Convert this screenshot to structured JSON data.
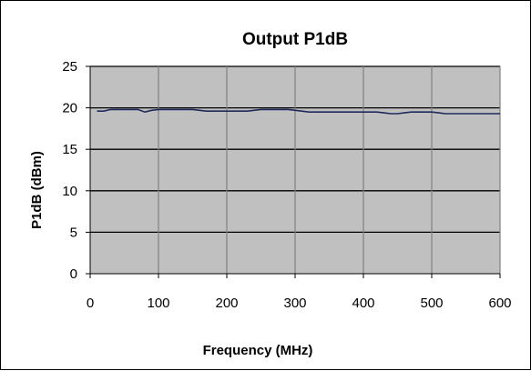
{
  "chart_data": {
    "type": "line",
    "title": "Output P1dB",
    "xlabel": "Frequency (MHz)",
    "ylabel": "P1dB (dBm)",
    "xlim": [
      0,
      600
    ],
    "ylim": [
      0,
      25
    ],
    "x_ticks": [
      "0",
      "100",
      "200",
      "300",
      "400",
      "500",
      "600"
    ],
    "y_ticks": [
      "0",
      "5",
      "10",
      "15",
      "20",
      "25"
    ],
    "grid": "major x and y",
    "legend": "none",
    "colors": {
      "plot_background": "#c0c0c0",
      "series_line": "#1f2a5c",
      "gridline": "#000000"
    },
    "series": [
      {
        "x": [
          10,
          20,
          30,
          40,
          50,
          60,
          70,
          80,
          90,
          100,
          110,
          120,
          130,
          140,
          150,
          160,
          170,
          180,
          190,
          200,
          210,
          220,
          230,
          240,
          250,
          260,
          270,
          280,
          290,
          300,
          310,
          320,
          330,
          340,
          350,
          360,
          370,
          380,
          390,
          400,
          410,
          420,
          430,
          440,
          450,
          460,
          470,
          480,
          490,
          500,
          510,
          520,
          530,
          540,
          550,
          560,
          570,
          580,
          590,
          600
        ],
        "y": [
          19.6,
          19.6,
          19.8,
          19.8,
          19.8,
          19.8,
          19.8,
          19.5,
          19.7,
          19.8,
          19.8,
          19.8,
          19.8,
          19.8,
          19.8,
          19.7,
          19.6,
          19.6,
          19.6,
          19.6,
          19.6,
          19.6,
          19.6,
          19.7,
          19.8,
          19.8,
          19.8,
          19.8,
          19.8,
          19.7,
          19.6,
          19.5,
          19.5,
          19.5,
          19.5,
          19.5,
          19.5,
          19.5,
          19.5,
          19.5,
          19.5,
          19.5,
          19.4,
          19.3,
          19.3,
          19.4,
          19.5,
          19.5,
          19.5,
          19.5,
          19.4,
          19.3,
          19.3,
          19.3,
          19.3,
          19.3,
          19.3,
          19.3,
          19.3,
          19.3
        ]
      }
    ]
  }
}
